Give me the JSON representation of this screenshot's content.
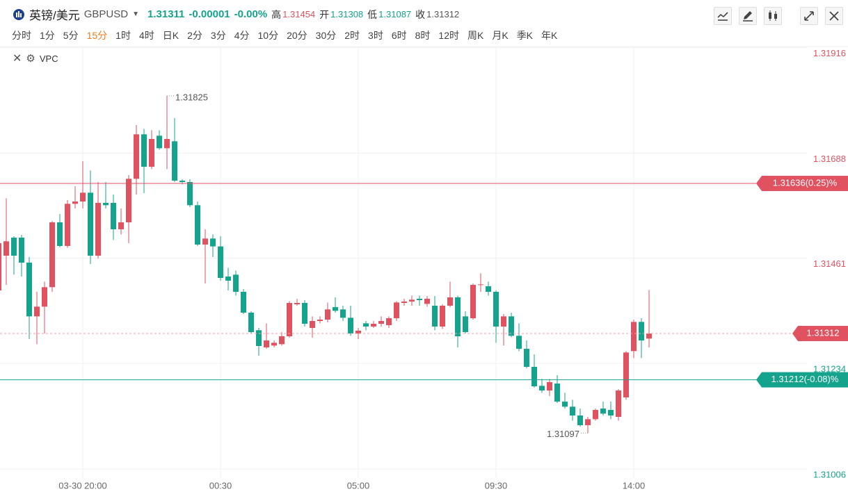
{
  "header": {
    "name": "英镑/美元",
    "symbol": "GBPUSD",
    "price": "1.31311",
    "change": "-0.00001",
    "change_pct": "-0.00%",
    "high_label": "高",
    "high": "1.31454",
    "open_label": "开",
    "open": "1.31308",
    "low_label": "低",
    "low": "1.31087",
    "close_label": "收",
    "close": "1.31312"
  },
  "toolbar": {
    "periods": [
      "分时",
      "1分",
      "5分",
      "15分",
      "1时",
      "4时",
      "日K",
      "2分",
      "3分",
      "4分",
      "10分",
      "20分",
      "30分",
      "2时",
      "3时",
      "6时",
      "8时",
      "12时",
      "周K",
      "月K",
      "季K",
      "年K"
    ],
    "selected": 3,
    "indicator": "VPC"
  },
  "chart_data": {
    "type": "candlestick",
    "up_color": "#e05260",
    "down_color": "#14a38c",
    "categories": [
      null,
      null,
      null,
      null,
      null,
      null,
      null,
      null,
      null,
      null,
      null,
      "03-30 20:00",
      null,
      null,
      null,
      null,
      null,
      null,
      null,
      null,
      null,
      null,
      null,
      null,
      null,
      null,
      null,
      null,
      null,
      "00:30",
      null,
      null,
      null,
      null,
      null,
      null,
      null,
      null,
      null,
      null,
      null,
      null,
      null,
      null,
      null,
      null,
      null,
      "05:00",
      null,
      null,
      null,
      null,
      null,
      null,
      null,
      null,
      null,
      null,
      null,
      null,
      null,
      null,
      null,
      null,
      null,
      "09:30",
      null,
      null,
      null,
      null,
      null,
      null,
      null,
      null,
      null,
      null,
      null,
      null,
      null,
      null,
      null,
      null,
      null,
      "14:00",
      null,
      null
    ],
    "open": [
      1.31405,
      1.3148,
      1.31519,
      1.31519,
      1.31465,
      1.31349,
      1.3137,
      1.31412,
      1.31552,
      1.31501,
      1.31592,
      1.31597,
      1.31616,
      1.3148,
      1.31594,
      1.31594,
      1.31537,
      1.31552,
      1.31646,
      1.31742,
      1.31672,
      1.31739,
      1.31712,
      1.31727,
      1.31642,
      1.31639,
      1.31589,
      1.31504,
      1.31517,
      1.315,
      1.31435,
      1.31439,
      1.31402,
      1.31357,
      1.31319,
      1.31282,
      1.31286,
      1.31289,
      1.31306,
      1.31375,
      1.31378,
      1.31324,
      1.31339,
      1.31342,
      1.31369,
      1.31364,
      1.31346,
      1.31312,
      1.31334,
      1.31327,
      1.31333,
      1.3133,
      1.31345,
      1.31378,
      1.31381,
      1.31387,
      1.31376,
      1.31372,
      1.31327,
      1.31372,
      1.3139,
      1.31349,
      1.31345,
      1.31417,
      1.31414,
      1.31402,
      1.31327,
      1.31349,
      1.31307,
      1.31279,
      1.3124,
      1.31199,
      1.31189,
      1.31204,
      1.31165,
      1.31154,
      1.31135,
      1.31114,
      1.31127,
      1.3115,
      1.31147,
      1.31132,
      1.31174,
      1.31274,
      1.31337,
      1.31301
    ],
    "high": [
      1.31514,
      1.31604,
      1.31522,
      1.31525,
      1.31477,
      1.31402,
      1.31424,
      1.31555,
      1.3157,
      1.316,
      1.3163,
      1.31684,
      1.31664,
      1.31639,
      1.31639,
      1.31612,
      1.31582,
      1.31654,
      1.31762,
      1.31754,
      1.31751,
      1.31751,
      1.31825,
      1.31777,
      1.31645,
      1.31645,
      1.31597,
      1.31537,
      1.31526,
      1.31522,
      1.31454,
      1.31448,
      1.31408,
      1.3136,
      1.31324,
      1.31334,
      1.31297,
      1.31315,
      1.31382,
      1.31387,
      1.31384,
      1.31349,
      1.31349,
      1.31379,
      1.3139,
      1.31372,
      1.31372,
      1.31324,
      1.31339,
      1.31339,
      1.31349,
      1.31349,
      1.31382,
      1.31387,
      1.31394,
      1.31394,
      1.31393,
      1.31393,
      1.31375,
      1.31424,
      1.31394,
      1.3136,
      1.3142,
      1.31442,
      1.31424,
      1.31405,
      1.31354,
      1.31357,
      1.31334,
      1.31297,
      1.31267,
      1.31214,
      1.31214,
      1.31222,
      1.31184,
      1.31169,
      1.3115,
      1.31132,
      1.3115,
      1.31165,
      1.31165,
      1.31192,
      1.31274,
      1.31342,
      1.31345,
      1.31406
    ],
    "low": [
      1.31402,
      1.31417,
      1.31439,
      1.31435,
      1.313,
      1.31289,
      1.31312,
      1.31402,
      1.31498,
      1.31497,
      1.31582,
      1.31582,
      1.31462,
      1.31474,
      1.31582,
      1.31514,
      1.31526,
      1.31507,
      1.31612,
      1.31615,
      1.31667,
      1.31709,
      1.31667,
      1.31639,
      1.31634,
      1.31585,
      1.31501,
      1.3142,
      1.31477,
      1.31426,
      1.31405,
      1.31394,
      1.31354,
      1.31312,
      1.31264,
      1.31279,
      1.31282,
      1.31286,
      1.31303,
      1.31372,
      1.31327,
      1.31303,
      1.31334,
      1.31336,
      1.31357,
      1.31339,
      1.31307,
      1.313,
      1.31319,
      1.31324,
      1.31327,
      1.31324,
      1.31339,
      1.31372,
      1.31372,
      1.31372,
      1.3137,
      1.31319,
      1.31322,
      1.31369,
      1.31282,
      1.31312,
      1.31342,
      1.31402,
      1.31394,
      1.31292,
      1.31286,
      1.31304,
      1.31274,
      1.31237,
      1.31195,
      1.31184,
      1.31177,
      1.31162,
      1.3115,
      1.31124,
      1.31111,
      1.31097,
      1.31124,
      1.31135,
      1.31127,
      1.31124,
      1.31169,
      1.31259,
      1.31259,
      1.31282
    ],
    "close": [
      1.31507,
      1.31511,
      1.3148,
      1.31465,
      1.31349,
      1.3137,
      1.31412,
      1.31552,
      1.31501,
      1.31592,
      1.31597,
      1.31616,
      1.3148,
      1.31594,
      1.31589,
      1.31537,
      1.31552,
      1.31646,
      1.31742,
      1.31672,
      1.31732,
      1.31712,
      1.31732,
      1.31642,
      1.31639,
      1.31589,
      1.31504,
      1.31517,
      1.315,
      1.31432,
      1.31426,
      1.31402,
      1.31357,
      1.31315,
      1.31285,
      1.31297,
      1.31292,
      1.31306,
      1.31378,
      1.31378,
      1.31333,
      1.31339,
      1.31342,
      1.31364,
      1.31361,
      1.31346,
      1.31312,
      1.31318,
      1.31327,
      1.31333,
      1.31339,
      1.31345,
      1.31379,
      1.31381,
      1.31385,
      1.31384,
      1.31387,
      1.31327,
      1.31372,
      1.3139,
      1.31306,
      1.31315,
      1.31417,
      1.31418,
      1.31402,
      1.31327,
      1.31349,
      1.31307,
      1.31279,
      1.3124,
      1.31198,
      1.31189,
      1.31207,
      1.31165,
      1.31154,
      1.31135,
      1.31114,
      1.31127,
      1.31147,
      1.31139,
      1.31135,
      1.31189,
      1.31271,
      1.31337,
      1.31297,
      1.31312
    ],
    "max_index": 22,
    "min_index": 77,
    "ylim": [
      1.31,
      1.3193
    ],
    "yticks": [
      1.31006,
      1.31234,
      1.31461,
      1.31688,
      1.31916
    ],
    "last_price": 1.31312,
    "price_lines": [
      {
        "value": 1.31636,
        "label": "1.31636(0.25)%",
        "color": "#e05260"
      },
      {
        "value": 1.31212,
        "label": "1.31212(-0.08)%",
        "color": "#14a38c"
      }
    ]
  }
}
